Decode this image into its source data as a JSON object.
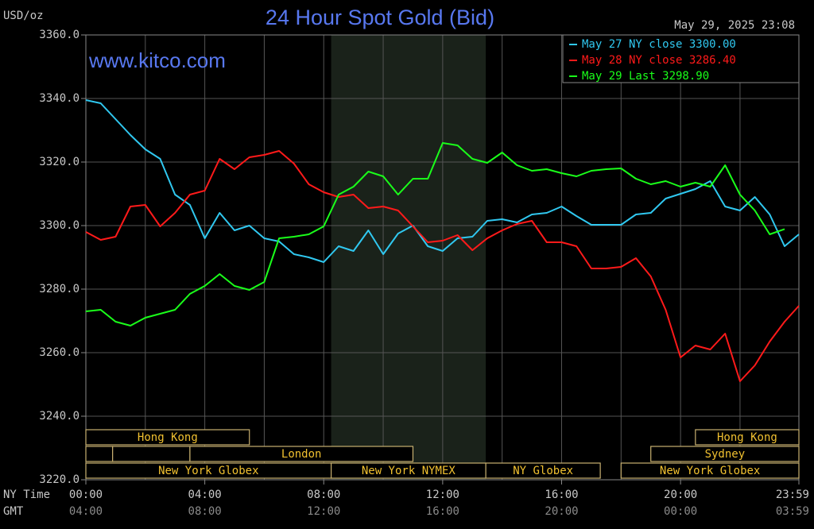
{
  "chart_data": {
    "type": "line",
    "title": "24 Hour Spot Gold (Bid)",
    "y_unit": "USD/oz",
    "timestamp": "May 29, 2025 23:08",
    "watermark": "www.kitco.com",
    "x_axis_label": "NY Time",
    "x2_axis_label": "GMT",
    "x": [
      0,
      0.5,
      1,
      1.5,
      2,
      2.5,
      3,
      3.5,
      4,
      4.5,
      5,
      5.5,
      6,
      6.5,
      7,
      7.5,
      8,
      8.5,
      9,
      9.5,
      10,
      10.5,
      11,
      11.5,
      12,
      12.5,
      13,
      13.5,
      14,
      14.5,
      15,
      15.5,
      16,
      16.5,
      17,
      17.5,
      18,
      18.5,
      19,
      19.5,
      20,
      20.5,
      21,
      21.5,
      22,
      22.5,
      23,
      23.5,
      23.98
    ],
    "xlim": [
      0,
      23.98
    ],
    "xticks": [
      {
        "value": 0,
        "label": "00:00",
        "gmt_label": "04:00"
      },
      {
        "value": 4,
        "label": "04:00",
        "gmt_label": "08:00"
      },
      {
        "value": 8,
        "label": "08:00",
        "gmt_label": "12:00"
      },
      {
        "value": 12,
        "label": "12:00",
        "gmt_label": "16:00"
      },
      {
        "value": 16,
        "label": "16:00",
        "gmt_label": "20:00"
      },
      {
        "value": 20,
        "label": "20:00",
        "gmt_label": "00:00"
      },
      {
        "value": 23.98,
        "label": "23:59",
        "gmt_label": "03:59"
      }
    ],
    "xgrid": [
      2,
      4,
      6,
      8,
      10,
      12,
      14,
      16,
      18,
      20,
      22
    ],
    "ylim": [
      3220,
      3360
    ],
    "yticks": [
      {
        "value": 3220,
        "label": "3220.0"
      },
      {
        "value": 3240,
        "label": "3240.0"
      },
      {
        "value": 3260,
        "label": "3260.0"
      },
      {
        "value": 3280,
        "label": "3280.0"
      },
      {
        "value": 3300,
        "label": "3300.0"
      },
      {
        "value": 3320,
        "label": "3320.0"
      },
      {
        "value": 3340,
        "label": "3340.0"
      },
      {
        "value": 3360,
        "label": "3360.0"
      }
    ],
    "grid": true,
    "legend": "top-right",
    "series": [
      {
        "name": "May 27 NY close 3300.00",
        "color": "#30c8f0",
        "values": [
          3339.5,
          3338.5,
          3333.5,
          3328.5,
          3324,
          3321,
          3309.75,
          3306.5,
          3296,
          3304,
          3298.5,
          3300,
          3296,
          3295,
          3291,
          3290,
          3288.5,
          3293.5,
          3292,
          3298.5,
          3291,
          3297.5,
          3300,
          3293.5,
          3292,
          3296,
          3296.5,
          3301.5,
          3302,
          3301,
          3303.5,
          3304,
          3306,
          3303,
          3300.25,
          3300.25,
          3300.25,
          3303.5,
          3304,
          3308.5,
          3310,
          3311.5,
          3314,
          3306,
          3304.75,
          3309,
          3303.5,
          3293.5,
          3297.25
        ]
      },
      {
        "name": "May 28 NY close 3286.40",
        "color": "#ff1a1a",
        "values": [
          3298,
          3295.5,
          3296.5,
          3306,
          3306.5,
          3299.75,
          3304,
          3309.75,
          3311,
          3321,
          3317.75,
          3321.5,
          3322.25,
          3323.5,
          3319.5,
          3313,
          3310.5,
          3309,
          3309.75,
          3305.5,
          3306,
          3304.75,
          3299.75,
          3294.75,
          3295.25,
          3297,
          3292.25,
          3296,
          3298.5,
          3300.5,
          3301.5,
          3294.75,
          3294.75,
          3293.5,
          3286.5,
          3286.5,
          3287,
          3289.75,
          3284,
          3273.5,
          3258.5,
          3262.25,
          3261,
          3266,
          3251,
          3256,
          3263.5,
          3269.75,
          3274.75
        ]
      },
      {
        "name": "May 29 Last 3298.90",
        "color": "#1aff1a",
        "values": [
          3273,
          3273.5,
          3269.75,
          3268.5,
          3271,
          3272.25,
          3273.5,
          3278.5,
          3281,
          3284.75,
          3281,
          3279.75,
          3282.25,
          3296,
          3296.5,
          3297.25,
          3299.75,
          3309.75,
          3312.25,
          3317,
          3315.5,
          3309.75,
          3314.75,
          3314.75,
          3326,
          3325.25,
          3321,
          3319.75,
          3323,
          3319,
          3317.25,
          3317.75,
          3316.5,
          3315.5,
          3317.25,
          3317.75,
          3318,
          3314.75,
          3313,
          3314,
          3312.25,
          3313.5,
          3312.25,
          3319,
          3309.75,
          3304.75,
          3297.25,
          3298.9,
          null
        ]
      }
    ],
    "sessions": [
      {
        "label": "Hong Kong",
        "start": 0,
        "end": 5.5,
        "row": 0
      },
      {
        "start": 0,
        "end": 0.9,
        "row": 1
      },
      {
        "start": 0.9,
        "end": 3.5,
        "row": 1
      },
      {
        "label": "London",
        "start": 3.5,
        "end": 11,
        "row": 1
      },
      {
        "label": "New York Globex",
        "start": 0,
        "end": 8.25,
        "row": 2
      },
      {
        "label": "New York NYMEX",
        "start": 8.25,
        "end": 13.45,
        "row": 2,
        "highlight": true
      },
      {
        "label": "NY Globex",
        "start": 13.45,
        "end": 17.3,
        "row": 2
      },
      {
        "label": "Hong Kong",
        "start": 20.5,
        "end": 23.98,
        "row": 0
      },
      {
        "label": "Sydney",
        "start": 19,
        "end": 23.98,
        "row": 1
      },
      {
        "label": "New York Globex",
        "start": 18,
        "end": 23.98,
        "row": 2
      }
    ]
  }
}
